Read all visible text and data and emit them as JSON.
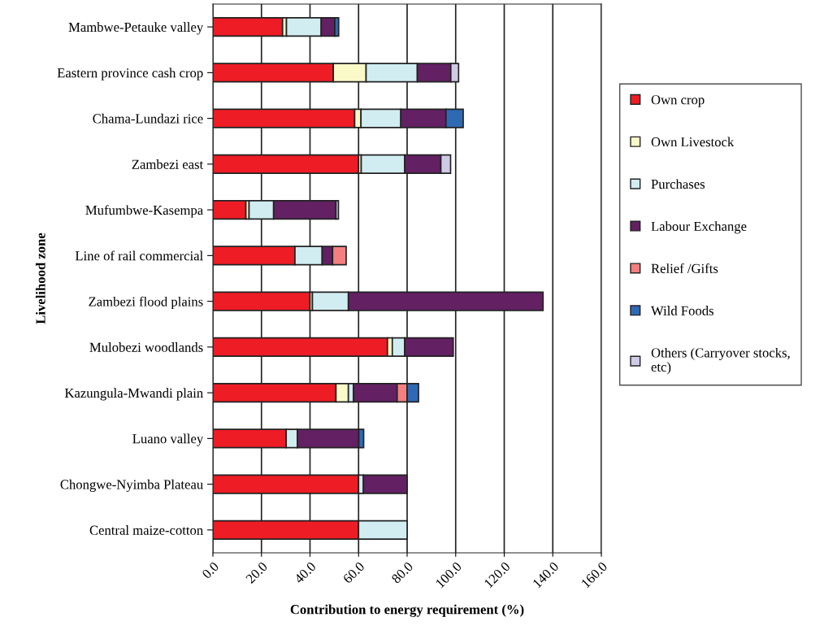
{
  "chart_data": {
    "type": "bar",
    "orientation": "horizontal",
    "stacked": true,
    "xlabel": "Contribution to energy requirement (%)",
    "ylabel": "Livelihood zone",
    "categories": [
      "Mambwe-Petauke valley",
      "Eastern province cash crop",
      "Chama-Lundazi rice",
      "Zambezi east",
      "Mufumbwe-Kasempa",
      "Line of rail commercial",
      "Zambezi flood plains",
      "Mulobezi woodlands",
      "Kazungula-Mwandi plain",
      "Luano valley",
      "Chongwe-Nyimba Plateau",
      "Central maize-cotton"
    ],
    "series": [
      {
        "name": "Own crop",
        "color": "#ee1c25",
        "values": [
          28.7,
          49.6,
          58.4,
          60.0,
          13.6,
          33.8,
          40.0,
          71.9,
          50.7,
          30.2,
          60.0,
          60.0
        ]
      },
      {
        "name": "Own Livestock",
        "color": "#fafac8",
        "values": [
          1.6,
          13.5,
          2.6,
          1.1,
          1.3,
          null,
          1.0,
          2.0,
          5.1,
          null,
          null,
          null
        ]
      },
      {
        "name": "Purchases",
        "color": "#d2edf2",
        "values": [
          14.3,
          21.1,
          16.4,
          17.9,
          10.1,
          11.2,
          14.8,
          5.1,
          2.1,
          4.6,
          2.0,
          20.0
        ]
      },
      {
        "name": "Labour Exchange",
        "color": "#632063",
        "values": [
          5.6,
          13.8,
          18.6,
          14.9,
          25.7,
          4.3,
          80.2,
          20.0,
          18.0,
          25.3,
          18.0,
          null
        ]
      },
      {
        "name": "Relief /Gifts",
        "color": "#f47f7f",
        "values": [
          null,
          null,
          null,
          null,
          null,
          5.6,
          null,
          null,
          4.1,
          null,
          null,
          null
        ]
      },
      {
        "name": "Wild Foods",
        "color": "#2e6ab4",
        "values": [
          1.6,
          null,
          7.1,
          null,
          null,
          null,
          null,
          null,
          4.7,
          2.0,
          null,
          null
        ]
      },
      {
        "name": "Others (Carryover stocks,\netc)",
        "color": "#cfcbe6",
        "values": [
          null,
          3.2,
          null,
          4.0,
          1.0,
          null,
          null,
          null,
          null,
          null,
          null,
          null
        ]
      }
    ],
    "xlim": [
      0,
      160
    ],
    "xticks": [
      {
        "value": 0,
        "label": "0.0"
      },
      {
        "value": 20,
        "label": "20.0"
      },
      {
        "value": 40,
        "label": "40.0"
      },
      {
        "value": 60,
        "label": "60.0"
      },
      {
        "value": 80,
        "label": "80.0"
      },
      {
        "value": 100,
        "label": "100.0"
      },
      {
        "value": 120,
        "label": "120.0"
      },
      {
        "value": 140,
        "label": "140.0"
      },
      {
        "value": 160,
        "label": "160.0"
      }
    ],
    "grid": "x",
    "legend": "right"
  }
}
